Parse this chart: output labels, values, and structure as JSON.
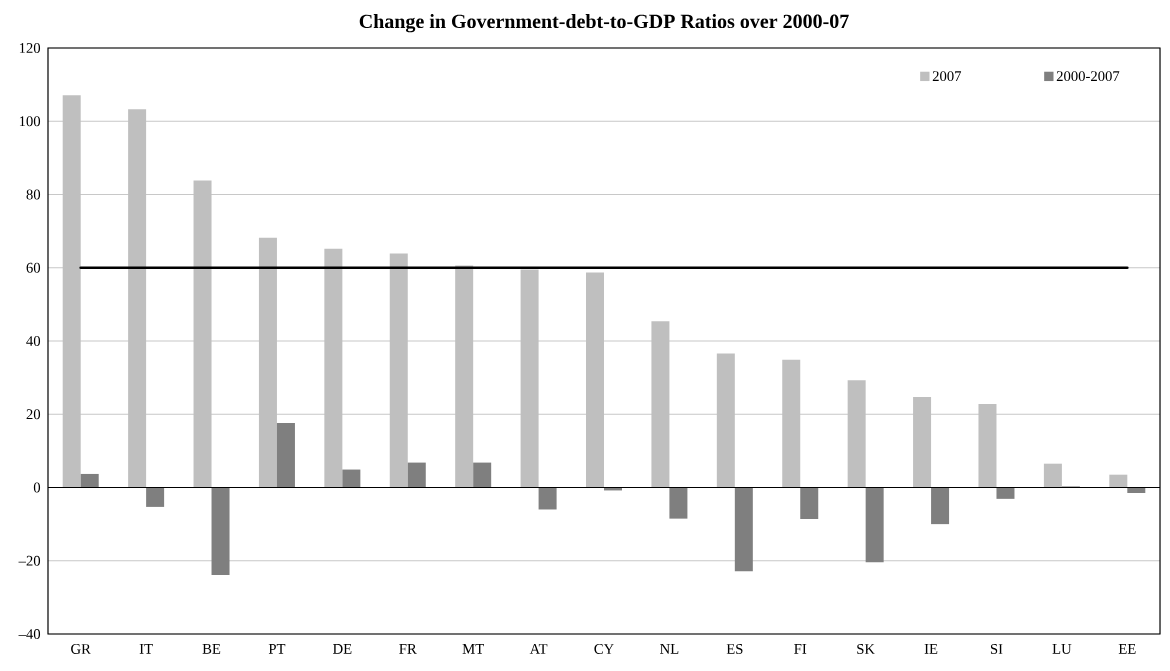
{
  "chart_data": {
    "type": "bar",
    "title": "Change in Government-debt-to-GDP Ratios over 2000-07",
    "categories": [
      "GR",
      "IT",
      "BE",
      "PT",
      "DE",
      "FR",
      "MT",
      "AT",
      "CY",
      "NL",
      "ES",
      "FI",
      "SK",
      "IE",
      "SI",
      "LU",
      "EE"
    ],
    "series": [
      {
        "name": "2007",
        "color": "#bfbfbf",
        "values": [
          107.1,
          103.3,
          83.8,
          68.2,
          65.2,
          63.9,
          60.6,
          59.5,
          58.7,
          45.4,
          36.6,
          34.9,
          29.3,
          24.7,
          22.8,
          6.5,
          3.5
        ]
      },
      {
        "name": "2000-2007",
        "color": "#7f7f7f",
        "values": [
          3.7,
          -5.3,
          -23.9,
          17.6,
          4.9,
          6.8,
          6.8,
          -6.0,
          -0.8,
          -8.5,
          -22.9,
          -8.6,
          -20.4,
          -10.0,
          -3.1,
          0.3,
          -1.5
        ]
      }
    ],
    "ylim": [
      -40,
      120
    ],
    "yticks": [
      {
        "value": -40,
        "label": "–40"
      },
      {
        "value": -20,
        "label": "–20"
      },
      0,
      20,
      40,
      60,
      80,
      100,
      120
    ],
    "ref_lines": [
      {
        "axis": "y",
        "value": 60,
        "color": "#000000"
      }
    ],
    "grid": "y",
    "legend": "top right"
  }
}
